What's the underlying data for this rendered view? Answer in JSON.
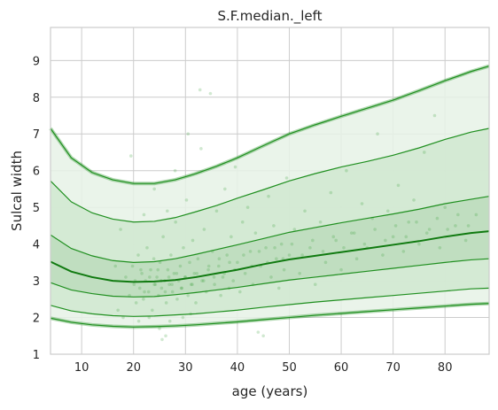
{
  "chart_data": {
    "type": "line",
    "title": "S.F.median._left",
    "xlabel": "age (years)",
    "ylabel": "Sulcal width",
    "xlim": [
      4,
      88.5
    ],
    "ylim": [
      1,
      9.9
    ],
    "x_ticks": [
      10,
      20,
      30,
      40,
      50,
      60,
      70,
      80
    ],
    "y_ticks": [
      1,
      2,
      3,
      4,
      5,
      6,
      7,
      8,
      9
    ],
    "grid": true,
    "colors": {
      "line": "#1f8f1f",
      "median": "#107a10",
      "band_outer": "#e6f2e6",
      "band_mid": "#d0e8d0",
      "band_inner": "#bcdcbc",
      "points": "#2e9a2e"
    },
    "x": [
      4,
      8,
      12,
      16,
      20,
      24,
      28,
      32,
      36,
      40,
      45,
      50,
      55,
      60,
      65,
      70,
      75,
      80,
      85,
      88.5
    ],
    "series": [
      {
        "values": [
          7.15,
          6.35,
          5.95,
          5.75,
          5.65,
          5.65,
          5.75,
          5.92,
          6.12,
          6.35,
          6.68,
          7.0,
          7.25,
          7.48,
          7.7,
          7.92,
          8.18,
          8.45,
          8.7,
          8.85
        ]
      },
      {
        "values": [
          5.72,
          5.15,
          4.85,
          4.68,
          4.6,
          4.62,
          4.72,
          4.88,
          5.05,
          5.25,
          5.48,
          5.72,
          5.92,
          6.1,
          6.25,
          6.42,
          6.62,
          6.85,
          7.05,
          7.15
        ]
      },
      {
        "values": [
          4.25,
          3.88,
          3.68,
          3.55,
          3.5,
          3.52,
          3.6,
          3.72,
          3.85,
          3.98,
          4.15,
          4.32,
          4.45,
          4.58,
          4.7,
          4.82,
          4.95,
          5.1,
          5.22,
          5.3
        ]
      },
      {
        "values": [
          3.52,
          3.25,
          3.1,
          3.0,
          2.97,
          2.98,
          3.02,
          3.1,
          3.2,
          3.3,
          3.45,
          3.58,
          3.68,
          3.78,
          3.88,
          3.98,
          4.08,
          4.2,
          4.3,
          4.35
        ]
      },
      {
        "values": [
          2.95,
          2.75,
          2.65,
          2.58,
          2.56,
          2.57,
          2.62,
          2.68,
          2.75,
          2.82,
          2.92,
          3.02,
          3.1,
          3.18,
          3.26,
          3.34,
          3.42,
          3.5,
          3.57,
          3.6
        ]
      },
      {
        "values": [
          2.33,
          2.18,
          2.1,
          2.05,
          2.03,
          2.04,
          2.07,
          2.1,
          2.15,
          2.2,
          2.28,
          2.35,
          2.42,
          2.48,
          2.54,
          2.6,
          2.66,
          2.72,
          2.78,
          2.8
        ]
      },
      {
        "values": [
          1.98,
          1.87,
          1.8,
          1.76,
          1.74,
          1.75,
          1.77,
          1.8,
          1.84,
          1.88,
          1.94,
          2.0,
          2.06,
          2.11,
          2.16,
          2.21,
          2.26,
          2.31,
          2.36,
          2.38
        ]
      }
    ],
    "scatter": {
      "points": [
        [
          18.5,
          3.1
        ],
        [
          19.2,
          2.6
        ],
        [
          19.8,
          3.4
        ],
        [
          20.1,
          2.9
        ],
        [
          20.5,
          2.4
        ],
        [
          20.9,
          3.7
        ],
        [
          21.2,
          2.8
        ],
        [
          21.6,
          3.2
        ],
        [
          21.9,
          2.5
        ],
        [
          22.3,
          3.0
        ],
        [
          22.6,
          3.9
        ],
        [
          22.9,
          2.7
        ],
        [
          23.3,
          3.3
        ],
        [
          23.6,
          2.2
        ],
        [
          23.9,
          3.6
        ],
        [
          24.2,
          2.9
        ],
        [
          24.5,
          3.1
        ],
        [
          24.8,
          2.6
        ],
        [
          25.1,
          3.5
        ],
        [
          25.4,
          2.8
        ],
        [
          25.7,
          4.2
        ],
        [
          26.0,
          3.0
        ],
        [
          26.3,
          2.4
        ],
        [
          26.6,
          3.3
        ],
        [
          26.9,
          2.9
        ],
        [
          27.2,
          3.7
        ],
        [
          27.5,
          2.7
        ],
        [
          27.8,
          3.2
        ],
        [
          28.1,
          4.6
        ],
        [
          28.4,
          2.5
        ],
        [
          28.7,
          3.0
        ],
        [
          29.0,
          3.4
        ],
        [
          29.3,
          2.8
        ],
        [
          29.6,
          3.9
        ],
        [
          29.9,
          3.1
        ],
        [
          30.2,
          5.2
        ],
        [
          30.5,
          2.6
        ],
        [
          30.8,
          3.5
        ],
        [
          31.1,
          2.9
        ],
        [
          31.4,
          4.1
        ],
        [
          31.7,
          3.2
        ],
        [
          32.0,
          2.4
        ],
        [
          32.4,
          3.6
        ],
        [
          32.8,
          8.2
        ],
        [
          33.2,
          3.0
        ],
        [
          33.6,
          4.4
        ],
        [
          34.0,
          2.7
        ],
        [
          34.4,
          3.3
        ],
        [
          34.8,
          8.1
        ],
        [
          35.2,
          3.8
        ],
        [
          35.6,
          2.9
        ],
        [
          36.0,
          4.9
        ],
        [
          36.4,
          3.4
        ],
        [
          36.8,
          2.6
        ],
        [
          37.2,
          3.1
        ],
        [
          37.6,
          5.5
        ],
        [
          38.0,
          3.7
        ],
        [
          38.4,
          2.8
        ],
        [
          38.8,
          4.2
        ],
        [
          39.2,
          3.0
        ],
        [
          39.6,
          6.1
        ],
        [
          40.0,
          3.5
        ],
        [
          40.5,
          2.7
        ],
        [
          41.0,
          4.6
        ],
        [
          41.5,
          3.2
        ],
        [
          42.0,
          5.0
        ],
        [
          42.5,
          3.8
        ],
        [
          43.0,
          2.9
        ],
        [
          43.5,
          4.3
        ],
        [
          44.0,
          1.6
        ],
        [
          44.5,
          3.4
        ],
        [
          45.0,
          1.5
        ],
        [
          45.5,
          3.9
        ],
        [
          46.0,
          5.3
        ],
        [
          46.5,
          3.1
        ],
        [
          47.0,
          4.5
        ],
        [
          47.5,
          3.6
        ],
        [
          48.0,
          2.8
        ],
        [
          48.5,
          4.0
        ],
        [
          49.0,
          3.3
        ],
        [
          49.5,
          5.8
        ],
        [
          50.0,
          3.7
        ],
        [
          51.0,
          4.4
        ],
        [
          52.0,
          3.2
        ],
        [
          53.0,
          4.9
        ],
        [
          54.0,
          3.9
        ],
        [
          55.0,
          2.9
        ],
        [
          56.0,
          4.6
        ],
        [
          57.0,
          3.5
        ],
        [
          58.0,
          5.4
        ],
        [
          59.0,
          4.1
        ],
        [
          60.0,
          3.3
        ],
        [
          61.0,
          6.0
        ],
        [
          62.0,
          4.3
        ],
        [
          63.0,
          3.6
        ],
        [
          64.0,
          5.1
        ],
        [
          65.0,
          3.9
        ],
        [
          66.0,
          4.7
        ],
        [
          67.0,
          7.0
        ],
        [
          68.0,
          3.7
        ],
        [
          69.0,
          4.9
        ],
        [
          70.0,
          4.2
        ],
        [
          71.0,
          5.6
        ],
        [
          72.0,
          3.8
        ],
        [
          73.0,
          4.6
        ],
        [
          74.0,
          5.2
        ],
        [
          75.0,
          4.0
        ],
        [
          76.0,
          6.5
        ],
        [
          77.0,
          4.4
        ],
        [
          78.0,
          7.5
        ],
        [
          79.0,
          3.9
        ],
        [
          80.0,
          5.0
        ],
        [
          82.0,
          4.5
        ],
        [
          84.0,
          4.1
        ],
        [
          86.0,
          4.8
        ],
        [
          16.5,
          3.4
        ],
        [
          17.0,
          2.2
        ],
        [
          17.5,
          4.4
        ],
        [
          18.0,
          2.0
        ],
        [
          19.5,
          6.4
        ],
        [
          21.0,
          1.9
        ],
        [
          22.0,
          4.8
        ],
        [
          23.0,
          2.0
        ],
        [
          24.0,
          5.5
        ],
        [
          25.0,
          1.7
        ],
        [
          26.5,
          4.9
        ],
        [
          27.0,
          1.9
        ],
        [
          28.0,
          6.0
        ],
        [
          29.5,
          2.0
        ],
        [
          30.5,
          7.0
        ],
        [
          31.0,
          2.1
        ],
        [
          33.0,
          6.6
        ],
        [
          25.5,
          1.4
        ],
        [
          26.2,
          1.5
        ],
        [
          20.3,
          3.0
        ],
        [
          21.4,
          3.3
        ],
        [
          22.1,
          2.7
        ],
        [
          23.1,
          3.1
        ],
        [
          24.0,
          2.9
        ],
        [
          24.7,
          3.3
        ],
        [
          25.3,
          3.0
        ],
        [
          26.1,
          2.7
        ],
        [
          26.8,
          3.1
        ],
        [
          27.4,
          2.9
        ],
        [
          28.3,
          3.2
        ],
        [
          29.2,
          2.8
        ],
        [
          30.0,
          3.1
        ],
        [
          31.3,
          2.9
        ],
        [
          32.2,
          3.2
        ],
        [
          33.5,
          3.0
        ],
        [
          34.5,
          3.4
        ],
        [
          35.5,
          3.1
        ],
        [
          36.5,
          3.6
        ],
        [
          37.5,
          3.2
        ],
        [
          38.5,
          3.5
        ],
        [
          39.5,
          3.3
        ],
        [
          41.2,
          3.7
        ],
        [
          42.8,
          3.4
        ],
        [
          44.2,
          3.8
        ],
        [
          45.8,
          3.5
        ],
        [
          47.2,
          3.9
        ],
        [
          48.8,
          3.6
        ],
        [
          50.5,
          4.0
        ],
        [
          52.5,
          3.7
        ],
        [
          54.5,
          4.1
        ],
        [
          56.5,
          3.8
        ],
        [
          58.5,
          4.2
        ],
        [
          60.5,
          3.9
        ],
        [
          62.5,
          4.3
        ],
        [
          64.5,
          4.0
        ],
        [
          66.5,
          4.4
        ],
        [
          68.5,
          4.1
        ],
        [
          70.5,
          4.5
        ],
        [
          72.5,
          4.2
        ],
        [
          74.5,
          4.6
        ],
        [
          76.5,
          4.3
        ],
        [
          78.5,
          4.7
        ],
        [
          80.5,
          4.4
        ],
        [
          82.5,
          4.8
        ],
        [
          84.5,
          4.5
        ]
      ]
    }
  }
}
